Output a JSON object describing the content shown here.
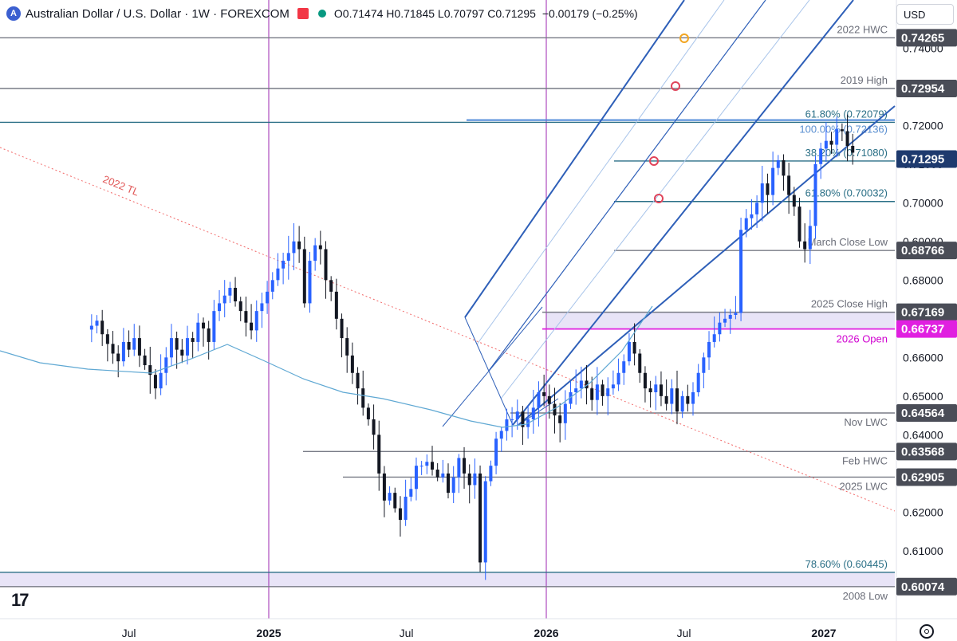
{
  "header": {
    "symbol_title": "Australian Dollar / U.S. Dollar · 1W · FOREXCOM",
    "open": "O0.71474",
    "high": "H0.71845",
    "low": "L0.70797",
    "close": "C0.71295",
    "change": "−0.00179 (−0.25%)",
    "currency_label": "USD"
  },
  "colors": {
    "up_candle": "#2962ff",
    "down_candle": "#131722",
    "ma_line": "#5fa8d3",
    "pitchfork": "#2e5fb8",
    "trendline": "#f26b6b",
    "open_line": "#e020e0",
    "vertical_marker": "#9c27b0",
    "level_line": "#6a6d78"
  },
  "chart_data": {
    "type": "candlestick",
    "title": "Australian Dollar / U.S. Dollar · 1W · FOREXCOM",
    "ylim": [
      0.5965,
      0.749
    ],
    "y_ticks": [
      0.6,
      0.61,
      0.62,
      0.63,
      0.64,
      0.65,
      0.66,
      0.67,
      0.68,
      0.69,
      0.7,
      0.71,
      0.72,
      0.74
    ],
    "y_tick_labels": [
      "",
      "0.61000",
      "0.62000",
      "",
      "0.64000",
      "0.65000",
      "0.66000",
      "",
      "0.68000",
      "0.69000",
      "0.70000",
      "0.71000",
      "0.72000",
      "0.74000"
    ],
    "x_labels": [
      {
        "date": "2024-07-01",
        "label": "Jul",
        "bold": false
      },
      {
        "date": "2025-01-01",
        "label": "2025",
        "bold": true
      },
      {
        "date": "2025-07-01",
        "label": "Jul",
        "bold": false
      },
      {
        "date": "2026-01-01",
        "label": "2026",
        "bold": true
      },
      {
        "date": "2026-07-01",
        "label": "Jul",
        "bold": false
      },
      {
        "date": "2027-01-01",
        "label": "2027",
        "bold": true
      }
    ],
    "vertical_markers": [
      "2025-01-01",
      "2026-01-01"
    ],
    "levels": [
      {
        "name": "2022 HWC",
        "price": 0.74265,
        "price_label": "0.74265",
        "style": "gray",
        "dark_tag": true
      },
      {
        "name": "2019 High",
        "price": 0.72954,
        "price_label": "0.72954",
        "style": "gray",
        "dark_tag": true
      },
      {
        "name": "61.80% (0.72079)",
        "price": 0.72079,
        "price_label": "",
        "style": "teal",
        "dark_tag": false
      },
      {
        "name": "100.00% (0.72136)",
        "price": 0.72136,
        "price_label": "",
        "style": "blue",
        "dark_tag": false
      },
      {
        "name": "38.20% (0.71080)",
        "price": 0.7108,
        "price_label": "",
        "style": "teal",
        "dark_tag": false
      },
      {
        "name": "61.80% (0.70032)",
        "price": 0.70032,
        "price_label": "",
        "style": "teal",
        "dark_tag": false
      },
      {
        "name": "March Close Low",
        "price": 0.68766,
        "price_label": "0.68766",
        "style": "gray",
        "dark_tag": true
      },
      {
        "name": "2025 Close High",
        "price": 0.67169,
        "price_label": "0.67169",
        "style": "gray",
        "dark_tag": true
      },
      {
        "name": "2026 Open",
        "price": 0.66737,
        "price_label": "0.66737",
        "style": "magenta",
        "dark_tag": false
      },
      {
        "name": "Nov LWC",
        "price": 0.64564,
        "price_label": "0.64564",
        "style": "gray",
        "dark_tag": true
      },
      {
        "name": "Feb HWC",
        "price": 0.63568,
        "price_label": "0.63568",
        "style": "gray",
        "dark_tag": true
      },
      {
        "name": "2025 LWC",
        "price": 0.62905,
        "price_label": "0.62905",
        "style": "gray",
        "dark_tag": true
      },
      {
        "name": "78.60% (0.60445)",
        "price": 0.60445,
        "price_label": "",
        "style": "teal",
        "dark_tag": false
      },
      {
        "name": "2008 Low",
        "price": 0.60074,
        "price_label": "0.60074",
        "style": "gray",
        "dark_tag": true
      }
    ],
    "last_price": {
      "price": 0.71295,
      "label": "0.71295"
    },
    "trendline_label": "2022 TL",
    "weekly_closes": [
      0.6682,
      0.6695,
      0.666,
      0.6635,
      0.661,
      0.659,
      0.664,
      0.662,
      0.665,
      0.6605,
      0.658,
      0.6555,
      0.652,
      0.656,
      0.66,
      0.665,
      0.662,
      0.6605,
      0.665,
      0.664,
      0.669,
      0.6675,
      0.664,
      0.672,
      0.674,
      0.676,
      0.678,
      0.6745,
      0.672,
      0.669,
      0.667,
      0.672,
      0.674,
      0.677,
      0.68,
      0.683,
      0.685,
      0.687,
      0.69,
      0.688,
      0.674,
      0.685,
      0.689,
      0.688,
      0.68,
      0.677,
      0.67,
      0.665,
      0.6605,
      0.656,
      0.652,
      0.647,
      0.644,
      0.64,
      0.63,
      0.623,
      0.625,
      0.621,
      0.618,
      0.624,
      0.626,
      0.632,
      0.632,
      0.633,
      0.631,
      0.629,
      0.63,
      0.625,
      0.629,
      0.634,
      0.63,
      0.627,
      0.63,
      0.607,
      0.628,
      0.632,
      0.639,
      0.641,
      0.644,
      0.644,
      0.646,
      0.642,
      0.644,
      0.647,
      0.651,
      0.65,
      0.648,
      0.645,
      0.643,
      0.648,
      0.651,
      0.652,
      0.654,
      0.652,
      0.649,
      0.653,
      0.65,
      0.652,
      0.653,
      0.656,
      0.659,
      0.664,
      0.661,
      0.656,
      0.652,
      0.651,
      0.653,
      0.65,
      0.648,
      0.652,
      0.646,
      0.65,
      0.648,
      0.651,
      0.656,
      0.66,
      0.664,
      0.666,
      0.669,
      0.67,
      0.671,
      0.6715,
      0.693,
      0.696,
      0.697,
      0.7,
      0.705,
      0.702,
      0.709,
      0.711,
      0.707,
      0.702,
      0.699,
      0.69,
      0.688,
      0.694,
      0.71,
      0.714,
      0.716,
      0.715,
      0.719,
      0.7185,
      0.7147,
      0.71295
    ]
  }
}
